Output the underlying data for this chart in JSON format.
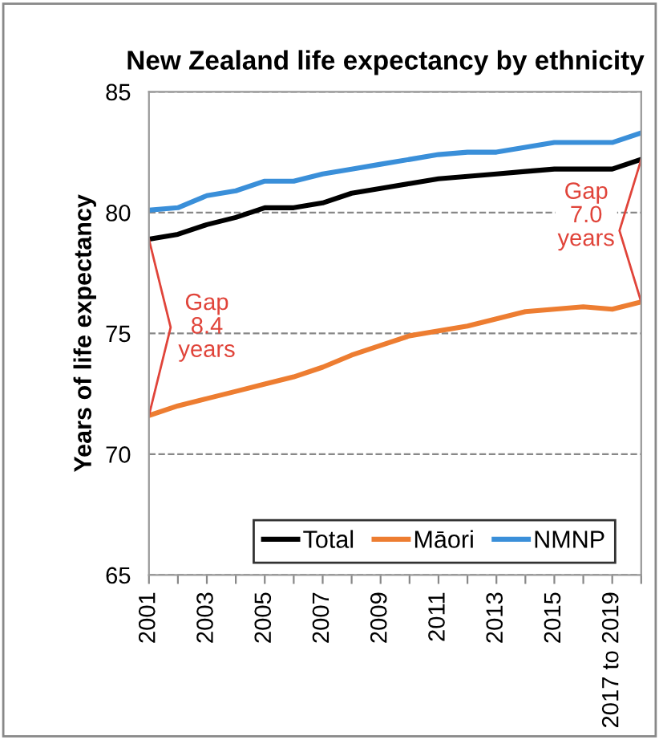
{
  "chart_data": {
    "type": "line",
    "title": "New Zealand life expectancy by ethnicity",
    "ylabel": "Years of life expectancy",
    "categories": [
      "2001",
      null,
      "2003",
      null,
      "2005",
      null,
      "2007",
      null,
      "2009",
      null,
      "2011",
      null,
      "2013",
      null,
      "2015",
      null,
      "2017 to 2019",
      null
    ],
    "series": [
      {
        "name": "Total",
        "color": "#000000",
        "values": [
          78.9,
          79.1,
          79.5,
          79.8,
          80.2,
          80.2,
          80.4,
          80.8,
          81.0,
          81.2,
          81.4,
          81.5,
          81.6,
          81.7,
          81.8,
          81.8,
          81.8,
          82.2
        ]
      },
      {
        "name": "Māori",
        "color": "#ed7d31",
        "values": [
          71.6,
          72.0,
          72.3,
          72.6,
          72.9,
          73.2,
          73.6,
          74.1,
          74.5,
          74.9,
          75.1,
          75.3,
          75.6,
          75.9,
          76.0,
          76.1,
          76.0,
          76.3
        ]
      },
      {
        "name": "NMNP",
        "color": "#3a8fd9",
        "values": [
          80.1,
          80.2,
          80.7,
          80.9,
          81.3,
          81.3,
          81.6,
          81.8,
          82.0,
          82.2,
          82.4,
          82.5,
          82.5,
          82.7,
          82.9,
          82.9,
          82.9,
          83.3
        ]
      }
    ],
    "ylim": [
      65,
      85
    ],
    "yticks": [
      65,
      70,
      75,
      80,
      85
    ],
    "grid": "y",
    "legend": "bottom",
    "marker": "none",
    "line_style": "solid",
    "annotations": [
      "Gap\n8.4\nyears",
      "Gap\n7.0\nyears"
    ]
  }
}
